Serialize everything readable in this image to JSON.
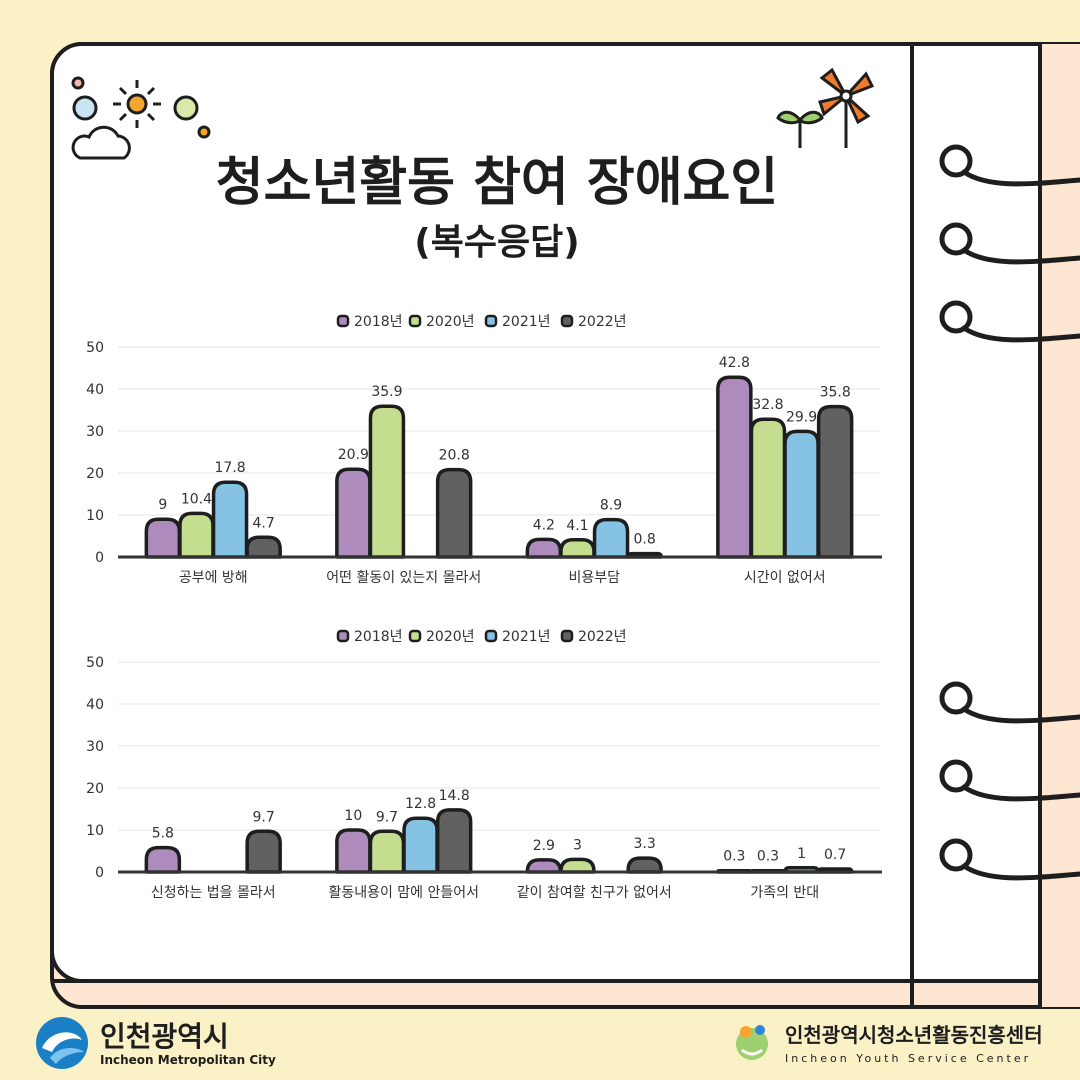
{
  "page": {
    "title": "청소년활동 참여 장애요인",
    "subtitle": "(복수응답)"
  },
  "colors": {
    "background": "#fbf1c7",
    "paper": "#ffffff",
    "paper_edge": "#fde6d2",
    "outline": "#1e1e1e",
    "grid": "#e6e6e6",
    "series": [
      "#ad8bbd",
      "#c4dd8f",
      "#86c2e4",
      "#616161"
    ]
  },
  "chart_data": [
    {
      "type": "bar",
      "legend_position": "top",
      "categories": [
        "공부에 방해",
        "어떤 활동이 있는지 몰라서",
        "비용부담",
        "시간이 없어서"
      ],
      "series": [
        {
          "name": "2018년",
          "values": [
            9,
            20.9,
            4.2,
            42.8
          ]
        },
        {
          "name": "2020년",
          "values": [
            10.4,
            35.9,
            4.1,
            32.8
          ]
        },
        {
          "name": "2021년",
          "values": [
            17.8,
            null,
            8.9,
            29.9
          ]
        },
        {
          "name": "2022년",
          "values": [
            4.7,
            20.8,
            0.8,
            35.8
          ]
        }
      ],
      "ylim": [
        0,
        50
      ],
      "yticks": [
        0,
        10,
        20,
        30,
        40,
        50
      ],
      "grid": true
    },
    {
      "type": "bar",
      "legend_position": "top",
      "categories": [
        "신청하는 법을 몰라서",
        "활동내용이 맘에 안들어서",
        "같이 참여할 친구가 없어서",
        "가족의 반대"
      ],
      "series": [
        {
          "name": "2018년",
          "values": [
            5.8,
            10,
            2.9,
            0.3
          ]
        },
        {
          "name": "2020년",
          "values": [
            null,
            9.7,
            3,
            0.3
          ]
        },
        {
          "name": "2021년",
          "values": [
            null,
            12.8,
            null,
            1
          ]
        },
        {
          "name": "2022년",
          "values": [
            9.7,
            14.8,
            3.3,
            0.7
          ]
        }
      ],
      "ylim": [
        0,
        50
      ],
      "yticks": [
        0,
        10,
        20,
        30,
        40,
        50
      ],
      "grid": true
    }
  ],
  "footer": {
    "left_logo": {
      "name": "인천광역시",
      "english": "Incheon Metropolitan City"
    },
    "right_logo": {
      "name": "인천광역시청소년활동진흥센터",
      "english": "Incheon Youth Service Center"
    }
  }
}
